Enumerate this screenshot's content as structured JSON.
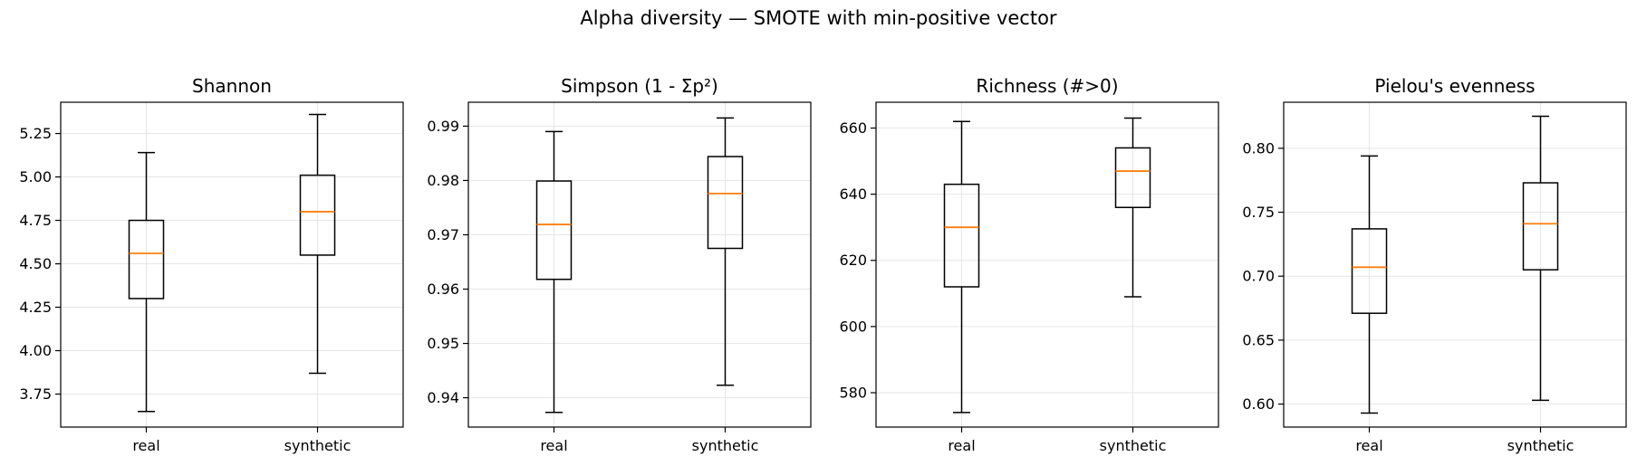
{
  "figure_title": "Alpha diversity — SMOTE with min-positive vector",
  "colors": {
    "box": "#000000",
    "median": "#ff7f0e",
    "grid": "#e6e6e6",
    "frame": "#000000"
  },
  "chart_data": [
    {
      "type": "box",
      "title": "Shannon",
      "categories": [
        "real",
        "synthetic"
      ],
      "ylim": [
        3.56,
        5.43
      ],
      "yticks": [
        3.75,
        4.0,
        4.25,
        4.5,
        4.75,
        5.0,
        5.25
      ],
      "ytick_labels": [
        "3.75",
        "4.00",
        "4.25",
        "4.50",
        "4.75",
        "5.00",
        "5.25"
      ],
      "grid": true,
      "boxes": [
        {
          "label": "real",
          "whislo": 3.65,
          "q1": 4.3,
          "med": 4.56,
          "q3": 4.75,
          "whishi": 5.14
        },
        {
          "label": "synthetic",
          "whislo": 3.87,
          "q1": 4.55,
          "med": 4.8,
          "q3": 5.01,
          "whishi": 5.36
        }
      ]
    },
    {
      "type": "box",
      "title": "Simpson (1 - Σp²)",
      "categories": [
        "real",
        "synthetic"
      ],
      "ylim": [
        0.9346,
        0.9944
      ],
      "yticks": [
        0.94,
        0.95,
        0.96,
        0.97,
        0.98,
        0.99
      ],
      "ytick_labels": [
        "0.94",
        "0.95",
        "0.96",
        "0.97",
        "0.98",
        "0.99"
      ],
      "grid": true,
      "boxes": [
        {
          "label": "real",
          "whislo": 0.9373,
          "q1": 0.9618,
          "med": 0.9719,
          "q3": 0.9799,
          "whishi": 0.989
        },
        {
          "label": "synthetic",
          "whislo": 0.9423,
          "q1": 0.9675,
          "med": 0.9776,
          "q3": 0.9844,
          "whishi": 0.9915
        }
      ]
    },
    {
      "type": "box",
      "title": "Richness (#>0)",
      "categories": [
        "real",
        "synthetic"
      ],
      "ylim": [
        569.6,
        667.8
      ],
      "yticks": [
        580,
        600,
        620,
        640,
        660
      ],
      "ytick_labels": [
        "580",
        "600",
        "620",
        "640",
        "660"
      ],
      "grid": true,
      "boxes": [
        {
          "label": "real",
          "whislo": 574,
          "q1": 612,
          "med": 630,
          "q3": 643,
          "whishi": 662
        },
        {
          "label": "synthetic",
          "whislo": 609,
          "q1": 636,
          "med": 647,
          "q3": 654,
          "whishi": 663
        }
      ]
    },
    {
      "type": "box",
      "title": "Pielou's evenness",
      "categories": [
        "real",
        "synthetic"
      ],
      "ylim": [
        0.582,
        0.836
      ],
      "yticks": [
        0.6,
        0.65,
        0.7,
        0.75,
        0.8
      ],
      "ytick_labels": [
        "0.60",
        "0.65",
        "0.70",
        "0.75",
        "0.80"
      ],
      "grid": true,
      "boxes": [
        {
          "label": "real",
          "whislo": 0.593,
          "q1": 0.671,
          "med": 0.707,
          "q3": 0.737,
          "whishi": 0.794
        },
        {
          "label": "synthetic",
          "whislo": 0.603,
          "q1": 0.705,
          "med": 0.741,
          "q3": 0.773,
          "whishi": 0.825
        }
      ]
    }
  ]
}
